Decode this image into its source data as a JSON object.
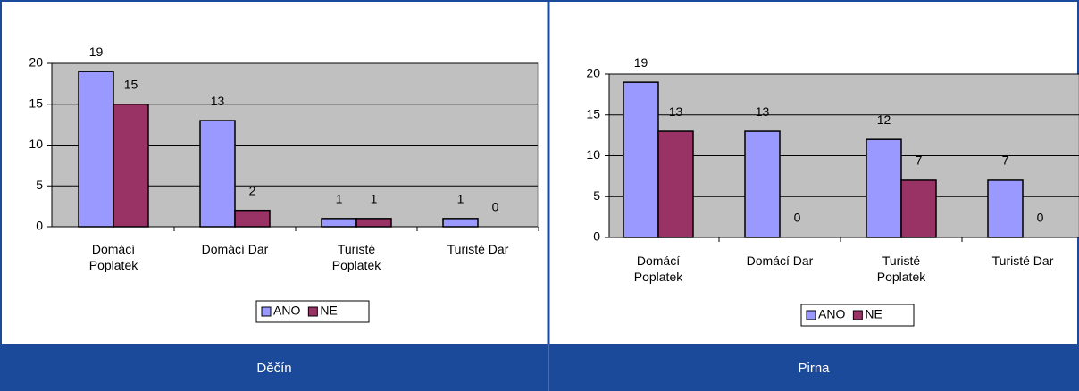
{
  "chart_data": [
    {
      "type": "bar",
      "title": "Děčín",
      "categories": [
        "Domácí Poplatek",
        "Domácí Dar",
        "Turisté Poplatek",
        "Turisté Dar"
      ],
      "series": [
        {
          "name": "ANO",
          "color": "#9999ff",
          "values": [
            19,
            13,
            1,
            1
          ]
        },
        {
          "name": "NE",
          "color": "#993366",
          "values": [
            15,
            2,
            1,
            0
          ]
        }
      ],
      "ylim": [
        0,
        20
      ],
      "yticks": [
        0,
        5,
        10,
        15,
        20
      ],
      "grid": true,
      "legend": "bottom"
    },
    {
      "type": "bar",
      "title": "Pirna",
      "categories": [
        "Domácí Poplatek",
        "Domácí Dar",
        "Turisté Poplatek",
        "Turisté Dar"
      ],
      "series": [
        {
          "name": "ANO",
          "color": "#9999ff",
          "values": [
            19,
            13,
            12,
            7
          ]
        },
        {
          "name": "NE",
          "color": "#993366",
          "values": [
            13,
            0,
            7,
            0
          ]
        }
      ],
      "ylim": [
        0,
        20
      ],
      "yticks": [
        0,
        5,
        10,
        15,
        20
      ],
      "grid": true,
      "legend": "bottom"
    }
  ]
}
